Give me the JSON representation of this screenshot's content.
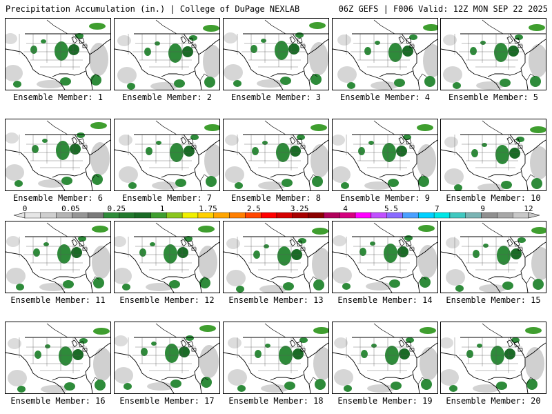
{
  "header": {
    "title": "Precipitation Accumulation (in.) | College of DuPage NEXLAB",
    "run_info": "06Z GEFS | F006 Valid: 12Z MON SEP 22 2025"
  },
  "members": [
    {
      "label": "Ensemble Member: 1"
    },
    {
      "label": "Ensemble Member: 2"
    },
    {
      "label": "Ensemble Member: 3"
    },
    {
      "label": "Ensemble Member: 4"
    },
    {
      "label": "Ensemble Member: 5"
    },
    {
      "label": "Ensemble Member: 6"
    },
    {
      "label": "Ensemble Member: 7"
    },
    {
      "label": "Ensemble Member: 8"
    },
    {
      "label": "Ensemble Member: 9"
    },
    {
      "label": "Ensemble Member: 10"
    },
    {
      "label": "Ensemble Member: 11"
    },
    {
      "label": "Ensemble Member: 12"
    },
    {
      "label": "Ensemble Member: 13"
    },
    {
      "label": "Ensemble Member: 14"
    },
    {
      "label": "Ensemble Member: 15"
    },
    {
      "label": "Ensemble Member: 16"
    },
    {
      "label": "Ensemble Member: 17"
    },
    {
      "label": "Ensemble Member: 18"
    },
    {
      "label": "Ensemble Member: 19"
    },
    {
      "label": "Ensemble Member: 20"
    }
  ],
  "color_scale": {
    "tick_labels": [
      "0",
      "0.05",
      "0.25",
      "1",
      "1.75",
      "2.5",
      "3.25",
      "4",
      "5.5",
      "7",
      "9",
      "12"
    ],
    "colors": [
      "#e6e6e6",
      "#cfcfcf",
      "#b4b4b4",
      "#969696",
      "#7a7a7a",
      "#2e8b3a",
      "#237a2e",
      "#1a6b26",
      "#3f9e2f",
      "#8bc61e",
      "#f0f000",
      "#ffd000",
      "#ffa500",
      "#ff7f00",
      "#ff4500",
      "#ff0000",
      "#d40000",
      "#a80000",
      "#8b0000",
      "#b0005a",
      "#d4007f",
      "#ff00ff",
      "#c050ff",
      "#8a6bff",
      "#4aa0ff",
      "#00d0ff",
      "#00e6e6",
      "#40c8c0",
      "#7ab4b4",
      "#909090",
      "#a8a8a8",
      "#c8c8c8"
    ]
  }
}
